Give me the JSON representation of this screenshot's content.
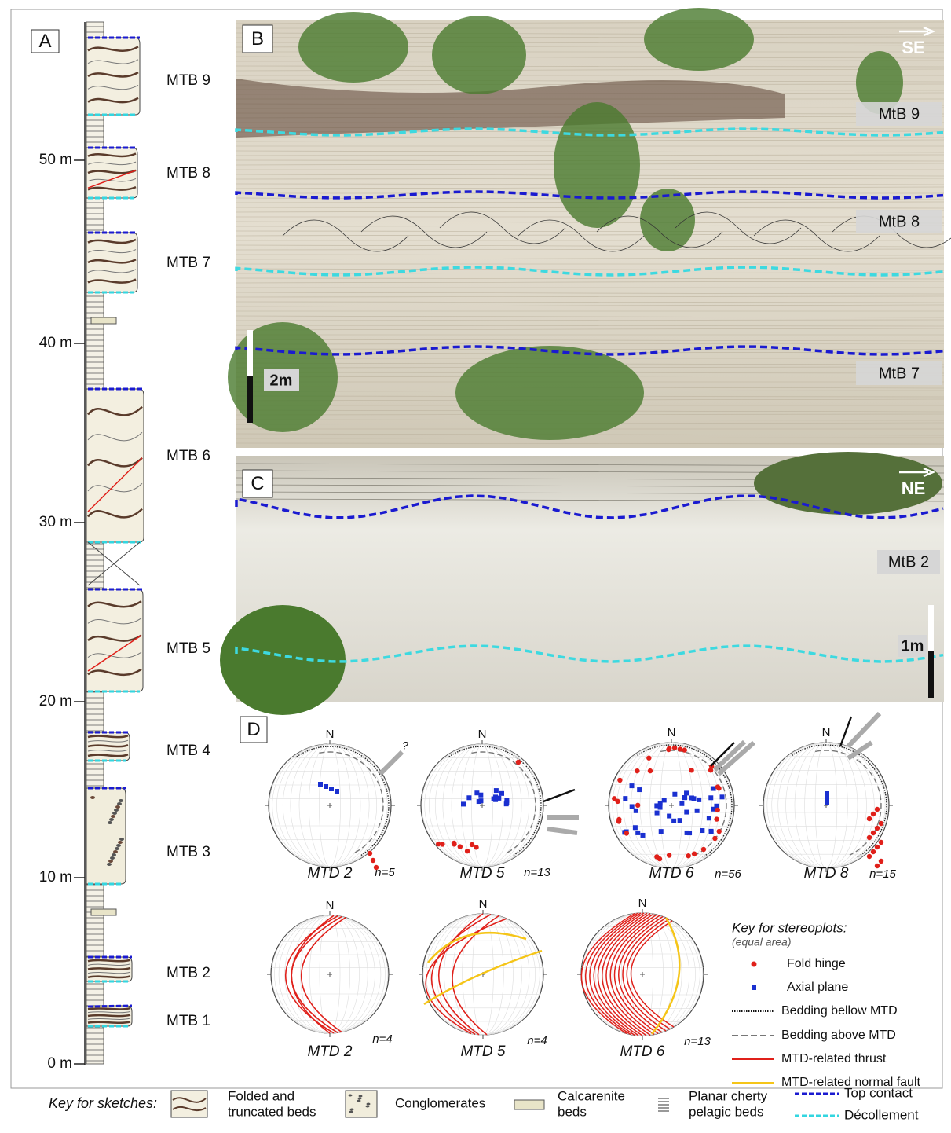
{
  "panel_a": {
    "label": "A",
    "depths": [
      "0 m",
      "10 m",
      "20 m",
      "30 m",
      "40 m",
      "50 m"
    ],
    "units": [
      "MTB 1",
      "MTB 2",
      "MTB 3",
      "MTB 4",
      "MTB 5",
      "MTB 6",
      "MTB 7",
      "MTB 8",
      "MTB 9"
    ]
  },
  "panel_b": {
    "label": "B",
    "direction": "SE",
    "units": [
      "MtB 9",
      "MtB 8",
      "MtB 7"
    ],
    "scale": "2m"
  },
  "panel_c": {
    "label": "C",
    "direction": "NE",
    "units": [
      "MtB 2"
    ],
    "scale": "1m"
  },
  "panel_d": {
    "label": "D",
    "north": "N",
    "query": "?",
    "top_plots": [
      {
        "name": "MTD 2",
        "n": "n=5"
      },
      {
        "name": "MTD 5",
        "n": "n=13"
      },
      {
        "name": "MTD 6",
        "n": "n=56"
      },
      {
        "name": "MTD 8",
        "n": "n=15"
      }
    ],
    "bottom_plots": [
      {
        "name": "MTD 2",
        "n": "n=4"
      },
      {
        "name": "MTD 5",
        "n": "n=4"
      },
      {
        "name": "MTD 6",
        "n": "n=13"
      }
    ],
    "key": {
      "title": "Key for stereoplots:",
      "subtitle": "(equal area)",
      "items": [
        "Fold hinge",
        "Axial plane",
        "Bedding bellow MTD",
        "Bedding above MTD",
        "MTD-related thrust",
        "MTD-related normal fault"
      ]
    }
  },
  "sketch_key": {
    "title": "Key for sketches:",
    "items": [
      [
        "Folded and",
        "truncated beds"
      ],
      [
        "Conglomerates"
      ],
      [
        "Calcarenite",
        "beds"
      ],
      [
        "Planar cherty",
        "pelagic beds"
      ],
      [
        "Top contact"
      ],
      [
        "Décollement"
      ]
    ]
  }
}
